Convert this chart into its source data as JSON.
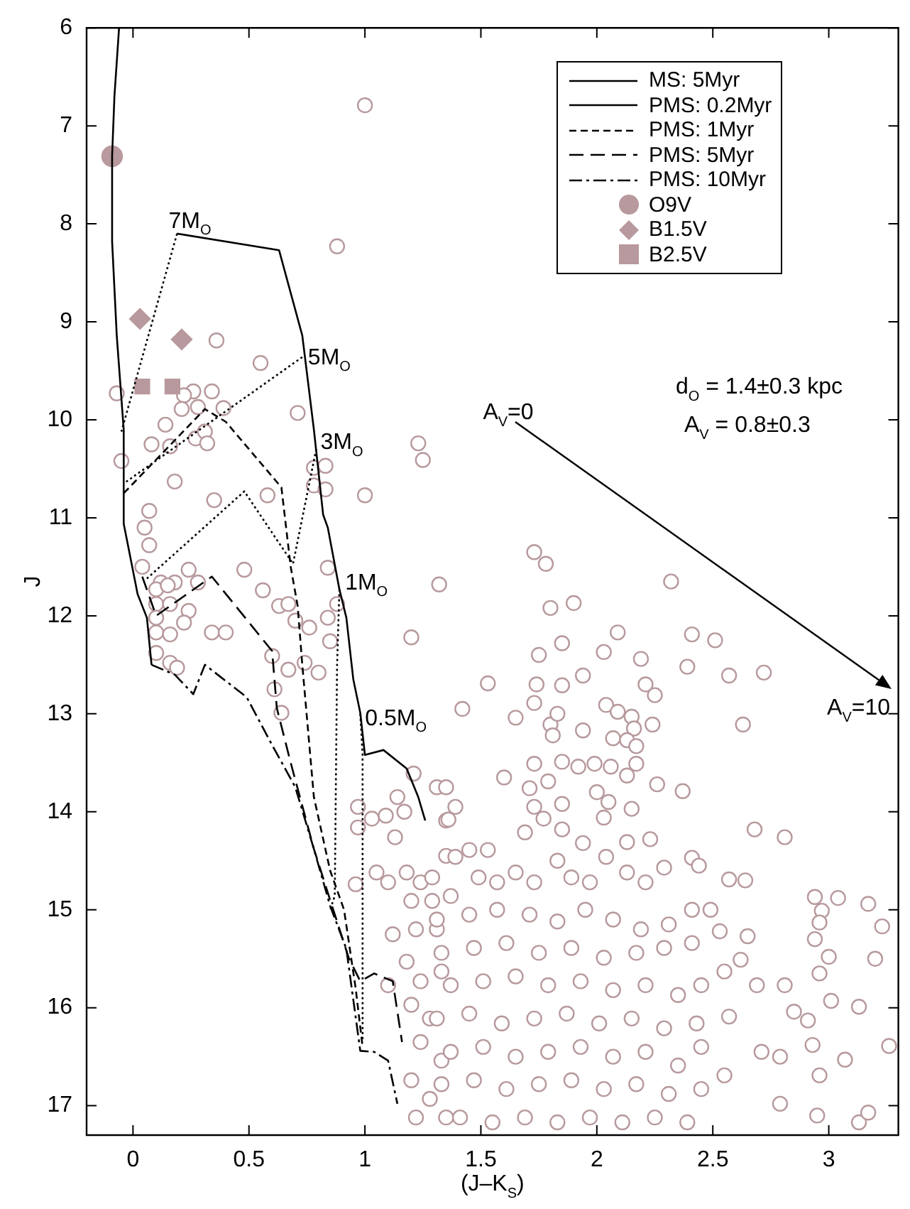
{
  "chart_data": {
    "type": "scatter",
    "xlabel": "(J–K$_{S}$)",
    "ylabel": "J",
    "xlim": [
      -0.2,
      3.3
    ],
    "ylim": [
      17.3,
      6
    ],
    "xticks": [
      0,
      0.5,
      1,
      1.5,
      2,
      2.5,
      3
    ],
    "yticks": [
      6,
      7,
      8,
      9,
      10,
      11,
      12,
      13,
      14,
      15,
      16,
      17
    ],
    "grid": false,
    "legend": "top right",
    "series": [
      {
        "name": "MS: 5Myr",
        "type": "line",
        "line_style": "solid",
        "marker": "none",
        "color": "#000000",
        "x": [
          -0.06,
          -0.08,
          -0.09,
          -0.09,
          -0.07,
          -0.04,
          -0.04,
          0.02,
          0.06,
          0.08
        ],
        "values": [
          6,
          6.7,
          7.31,
          8.18,
          9.14,
          10.1,
          11.06,
          11.78,
          12.02,
          12.5
        ]
      },
      {
        "name": "PMS: 0.2Myr",
        "type": "line",
        "line_style": "solid",
        "marker": "none",
        "color": "#000000",
        "x": [
          0.19,
          0.63,
          0.73,
          0.78,
          0.82,
          0.84,
          0.89,
          0.92,
          0.95,
          0.98,
          1.0,
          1.08,
          1.18,
          1.23,
          1.26
        ],
        "values": [
          8.1,
          8.27,
          9.14,
          10.1,
          10.97,
          11.1,
          11.73,
          12.02,
          12.65,
          12.99,
          13.42,
          13.37,
          13.56,
          13.85,
          14.09
        ]
      },
      {
        "name": "PMS: 1Myr",
        "type": "line",
        "line_style": "dashed",
        "marker": "none",
        "color": "#000000",
        "x": [
          -0.04,
          0.31,
          0.4,
          0.64,
          0.68,
          0.71,
          0.73,
          0.78,
          0.85,
          0.91,
          0.96,
          0.99
        ],
        "values": [
          10.75,
          9.89,
          10.02,
          10.69,
          11.5,
          11.9,
          12.5,
          13.85,
          14.6,
          15.0,
          15.8,
          16.4
        ]
      },
      {
        "name": "PMS: 5Myr",
        "type": "line",
        "line_style": "longdash",
        "marker": "none",
        "color": "#000000",
        "x": [
          0.04,
          0.1,
          0.34,
          0.6,
          0.62,
          0.68,
          0.78,
          0.85,
          0.93,
          0.98,
          1.04,
          1.12,
          1.16
        ],
        "values": [
          11.6,
          12.0,
          11.6,
          12.36,
          12.94,
          13.5,
          14.38,
          14.9,
          15.49,
          15.73,
          15.65,
          15.73,
          16.35
        ]
      },
      {
        "name": "PMS: 10Myr",
        "type": "line",
        "line_style": "dashdot",
        "marker": "none",
        "color": "#000000",
        "x": [
          0.08,
          0.18,
          0.26,
          0.31,
          0.49,
          0.6,
          0.7,
          0.78,
          0.85,
          0.92,
          0.98,
          1.04,
          1.1,
          1.14
        ],
        "values": [
          12.5,
          12.6,
          12.8,
          12.5,
          12.83,
          13.32,
          13.75,
          14.38,
          14.96,
          15.4,
          16.44,
          16.45,
          16.54,
          16.98
        ]
      },
      {
        "type": "line",
        "line_style": "dotted",
        "marker": "none",
        "color": "#000000",
        "x": [
          0.19,
          -0.05
        ],
        "values": [
          8.1,
          10.12
        ]
      },
      {
        "type": "line",
        "line_style": "dotted",
        "marker": "none",
        "color": "#000000",
        "x": [
          0.73,
          -0.04
        ],
        "values": [
          9.36,
          10.65
        ]
      },
      {
        "type": "line",
        "line_style": "dotted",
        "marker": "none",
        "color": "#000000",
        "x": [
          0.79,
          0.69,
          0.48,
          0.06
        ],
        "values": [
          10.3,
          11.47,
          10.73,
          11.62
        ]
      },
      {
        "type": "line",
        "line_style": "dotted",
        "marker": "none",
        "color": "#000000",
        "x": [
          0.89,
          0.88,
          0.87,
          0.85
        ],
        "values": [
          11.73,
          12.5,
          14.86,
          15.0
        ]
      },
      {
        "type": "line",
        "line_style": "dotted",
        "marker": "none",
        "color": "#000000",
        "x": [
          0.98,
          0.99,
          0.99
        ],
        "values": [
          13.0,
          13.42,
          16.35
        ]
      },
      {
        "name": "O9V",
        "type": "scatter",
        "marker": "circle",
        "color": "#b8999d",
        "x": [
          -0.09
        ],
        "values": [
          7.31
        ]
      },
      {
        "name": "B1.5V",
        "type": "scatter",
        "marker": "diamond",
        "color": "#b8999d",
        "x": [
          0.03,
          0.21
        ],
        "values": [
          8.97,
          9.18
        ]
      },
      {
        "name": "B2.5V",
        "type": "scatter",
        "marker": "square",
        "color": "#b8999d",
        "x": [
          0.04,
          0.17
        ],
        "values": [
          9.66,
          9.66
        ]
      },
      {
        "type": "scatter",
        "marker": "circle",
        "color": "#b8999d",
        "x": [
          1.0,
          0.88,
          0.36,
          0.55,
          -0.07,
          0.26,
          0.22,
          0.34,
          0.21,
          0.28,
          0.39,
          0.71,
          0.14,
          0.08,
          0.16,
          0.27,
          0.31,
          0.32,
          -0.05,
          0.18,
          0.35,
          0.58,
          0.78,
          0.83,
          0.78,
          0.83,
          1.0,
          1.23,
          1.25,
          0.07,
          0.05,
          0.07,
          0.04,
          0.24,
          0.48,
          0.56,
          0.84,
          1.32,
          0.12,
          0.18,
          0.28,
          0.1,
          0.15,
          0.1,
          0.16,
          0.24,
          0.1,
          0.22,
          0.1,
          0.16,
          0.34,
          0.4,
          0.63,
          0.67,
          0.7,
          0.76,
          0.84,
          0.88,
          0.85,
          1.2,
          0.1,
          0.16,
          0.19,
          0.6,
          0.67,
          0.74,
          0.8,
          0.61,
          0.64,
          1.21,
          0.97,
          1.03,
          1.09,
          0.97,
          1.14,
          1.17,
          1.13,
          1.31,
          1.35,
          1.35,
          0.96,
          1.05,
          1.1,
          1.18,
          1.24,
          1.2,
          1.29,
          1.12,
          1.22,
          1.31,
          1.18,
          1.24,
          1.1,
          1.33,
          1.2,
          1.28,
          1.24,
          1.33,
          1.2,
          1.28,
          1.35,
          1.22,
          1.73,
          1.78,
          2.32,
          1.8,
          1.9,
          2.09,
          1.85,
          1.75,
          2.03,
          2.41,
          2.51,
          1.53,
          1.74,
          1.85,
          1.94,
          2.19,
          2.21,
          2.25,
          2.39,
          2.57,
          2.72,
          1.42,
          1.65,
          1.73,
          1.8,
          1.83,
          1.81,
          1.94,
          2.04,
          2.09,
          2.15,
          2.16,
          2.24,
          2.07,
          2.13,
          2.17,
          2.63,
          1.73,
          1.85,
          1.92,
          1.99,
          2.06,
          2.13,
          2.17,
          1.6,
          1.35,
          1.39,
          1.36,
          1.71,
          1.79,
          1.85,
          1.73,
          2.0,
          2.05,
          2.15,
          2.26,
          2.37,
          2.03,
          1.77,
          2.68,
          2.81,
          1.69,
          1.85,
          1.94,
          2.13,
          2.23,
          1.45,
          1.53,
          1.39,
          2.41,
          2.44,
          2.04,
          1.83,
          2.57,
          2.64,
          2.41,
          2.49,
          2.94,
          3.04,
          2.97,
          2.96,
          3.17,
          3.23,
          2.94,
          3.0,
          3.2,
          2.53,
          2.65,
          2.62,
          2.55,
          2.69,
          2.81,
          2.96,
          3.01,
          3.13,
          2.57,
          2.85,
          2.91,
          3.26,
          3.07,
          2.93,
          2.96,
          2.79,
          2.71,
          2.45,
          2.55,
          2.79,
          2.95,
          3.13,
          3.17,
          1.29,
          1.37,
          1.49,
          1.57,
          1.65,
          1.73,
          1.89,
          1.97,
          2.13,
          2.21,
          2.29,
          1.31,
          1.45,
          1.57,
          1.71,
          1.83,
          1.95,
          2.07,
          2.19,
          2.31,
          1.33,
          1.47,
          1.61,
          1.75,
          1.89,
          2.03,
          2.17,
          2.29,
          2.41,
          1.37,
          1.51,
          1.65,
          1.79,
          1.93,
          2.07,
          2.21,
          2.35,
          2.45,
          1.31,
          1.45,
          1.59,
          1.73,
          1.87,
          2.01,
          2.15,
          2.29,
          2.43,
          1.37,
          1.51,
          1.65,
          1.79,
          1.93,
          2.07,
          2.21,
          2.35,
          1.33,
          1.47,
          1.61,
          1.75,
          1.89,
          2.03,
          2.17,
          2.31,
          2.45,
          1.41,
          1.55,
          1.69,
          1.83,
          1.97,
          2.11,
          2.25,
          2.39
        ],
        "values": [
          6.79,
          8.23,
          9.19,
          9.42,
          9.73,
          9.71,
          9.75,
          9.71,
          9.89,
          9.87,
          9.88,
          9.93,
          10.05,
          10.25,
          10.27,
          10.19,
          10.12,
          10.24,
          10.42,
          10.63,
          10.82,
          10.77,
          10.49,
          10.47,
          10.67,
          10.71,
          10.77,
          10.24,
          10.41,
          10.93,
          11.1,
          11.28,
          11.5,
          11.53,
          11.53,
          11.74,
          11.51,
          11.68,
          11.66,
          11.66,
          11.66,
          11.73,
          11.69,
          11.88,
          11.88,
          11.95,
          12.02,
          12.07,
          12.17,
          12.19,
          12.17,
          12.17,
          11.9,
          11.88,
          12.05,
          12.12,
          12.02,
          11.88,
          12.26,
          12.22,
          12.38,
          12.48,
          12.53,
          12.41,
          12.55,
          12.48,
          12.58,
          12.75,
          12.99,
          13.61,
          13.95,
          14.07,
          14.04,
          14.16,
          13.85,
          14.0,
          14.26,
          13.75,
          14.09,
          14.45,
          14.74,
          14.62,
          14.72,
          14.62,
          14.72,
          14.91,
          14.91,
          15.25,
          15.2,
          15.2,
          15.53,
          15.73,
          15.77,
          15.63,
          15.97,
          16.11,
          16.35,
          16.54,
          16.74,
          16.93,
          17.12,
          17.12,
          11.35,
          11.47,
          11.65,
          11.92,
          11.87,
          12.17,
          12.28,
          12.4,
          12.37,
          12.19,
          12.25,
          12.69,
          12.7,
          12.71,
          12.61,
          12.44,
          12.7,
          12.81,
          12.52,
          12.61,
          12.58,
          12.95,
          13.04,
          12.89,
          13.11,
          13.0,
          13.22,
          13.17,
          12.91,
          12.98,
          13.03,
          13.15,
          13.11,
          13.25,
          13.27,
          13.33,
          13.11,
          13.51,
          13.49,
          13.54,
          13.51,
          13.54,
          13.63,
          13.51,
          13.65,
          13.75,
          13.95,
          14.08,
          13.76,
          13.69,
          13.92,
          13.95,
          13.8,
          13.9,
          13.97,
          13.72,
          13.79,
          14.06,
          14.07,
          14.18,
          14.26,
          14.21,
          14.18,
          14.32,
          14.31,
          14.28,
          14.39,
          14.39,
          14.46,
          14.47,
          14.55,
          14.46,
          14.5,
          14.69,
          14.7,
          15.0,
          15.0,
          14.87,
          14.88,
          15.01,
          15.13,
          14.94,
          15.17,
          15.3,
          15.48,
          15.5,
          15.22,
          15.27,
          15.51,
          15.63,
          15.77,
          15.77,
          15.65,
          15.93,
          15.99,
          16.09,
          16.04,
          16.13,
          16.39,
          16.53,
          16.38,
          16.69,
          16.5,
          16.45,
          16.4,
          16.69,
          16.98,
          17.1,
          17.17,
          17.07,
          14.67,
          14.86,
          14.67,
          14.72,
          14.62,
          14.72,
          14.67,
          14.72,
          14.62,
          14.72,
          14.57,
          15.1,
          15.05,
          15.0,
          15.05,
          15.12,
          15.0,
          15.1,
          15.2,
          15.15,
          15.44,
          15.39,
          15.34,
          15.44,
          15.39,
          15.49,
          15.44,
          15.39,
          15.34,
          15.77,
          15.73,
          15.68,
          15.77,
          15.73,
          15.82,
          15.77,
          15.87,
          15.77,
          16.11,
          16.06,
          16.16,
          16.11,
          16.06,
          16.16,
          16.11,
          16.21,
          16.16,
          16.45,
          16.4,
          16.5,
          16.45,
          16.4,
          16.5,
          16.45,
          16.59,
          16.78,
          16.74,
          16.83,
          16.78,
          16.74,
          16.83,
          16.78,
          16.88,
          16.83,
          17.12,
          17.17,
          17.12,
          17.17,
          17.12,
          17.17,
          17.12,
          17.17
        ]
      }
    ],
    "annotations": [
      {
        "text": "7M$_{O}$",
        "x": 0.19,
        "y": 8.1
      },
      {
        "text": "5M$_{O}$",
        "x": 0.73,
        "y": 9.36
      },
      {
        "text": "3M$_{O}$",
        "x": 0.79,
        "y": 10.3
      },
      {
        "text": "1M$_{O}$",
        "x": 0.89,
        "y": 11.73
      },
      {
        "text": "0.5M$_{O}$",
        "x": 0.97,
        "y": 13.0
      },
      "A$_{V}$=0",
      "A$_{V}$=10",
      "d$_{O}$ = 1.4±0.3 kpc",
      "A$_{V}$ = 0.8±0.3"
    ]
  }
}
